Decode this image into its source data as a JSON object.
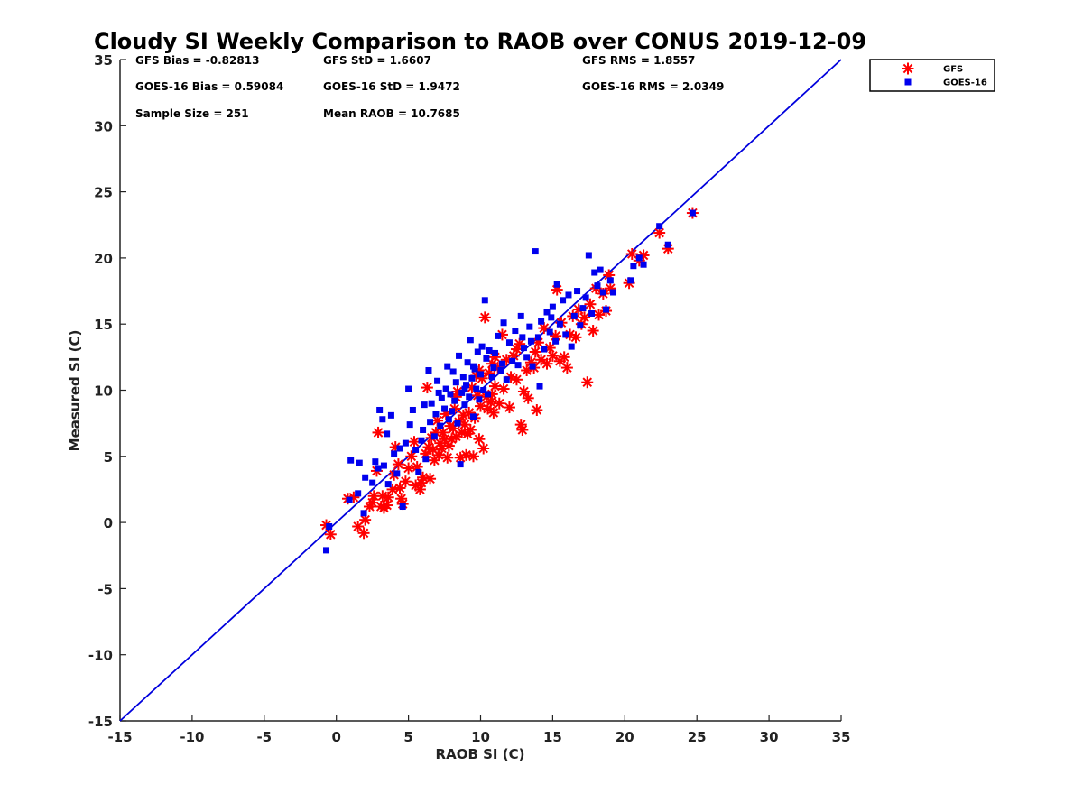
{
  "chart_data": {
    "type": "scatter",
    "title": "Cloudy SI Weekly Comparison to RAOB over CONUS 2019-12-09",
    "xlabel": "RAOB SI (C)",
    "ylabel": "Measured SI (C)",
    "xlim": [
      -15,
      35
    ],
    "ylim": [
      -15,
      35
    ],
    "xticks": [
      -15,
      -10,
      -5,
      0,
      5,
      10,
      15,
      20,
      25,
      30,
      35
    ],
    "yticks": [
      -15,
      -10,
      -5,
      0,
      5,
      10,
      15,
      20,
      25,
      30,
      35
    ],
    "grid": false,
    "legend_position": "outside-top-right",
    "reference_line": {
      "x": [
        -15,
        35
      ],
      "y": [
        -15,
        35
      ],
      "color": "#0000dd"
    },
    "stats": [
      "GFS Bias = -0.82813",
      "GFS StD = 1.6607",
      "GFS RMS = 1.8557",
      "GOES-16 Bias = 0.59084",
      "GOES-16 StD = 1.9472",
      "GOES-16 RMS = 2.0349",
      "Sample Size = 251",
      "Mean RAOB = 10.7685"
    ],
    "series": [
      {
        "name": "GFS",
        "color": "#ff0000",
        "marker": "asterisk",
        "points": [
          [
            -0.7,
            -0.2
          ],
          [
            -0.4,
            -0.9
          ],
          [
            0.8,
            1.8
          ],
          [
            1.5,
            -0.3
          ],
          [
            1.9,
            -0.8
          ],
          [
            2.0,
            0.2
          ],
          [
            1.2,
            1.9
          ],
          [
            2.3,
            1.2
          ],
          [
            2.6,
            2.0
          ],
          [
            2.8,
            3.9
          ],
          [
            2.9,
            6.8
          ],
          [
            3.1,
            1.2
          ],
          [
            3.3,
            1.1
          ],
          [
            3.5,
            1.3
          ],
          [
            3.6,
            1.9
          ],
          [
            3.9,
            2.5
          ],
          [
            4.0,
            3.6
          ],
          [
            4.1,
            5.7
          ],
          [
            4.3,
            4.4
          ],
          [
            4.5,
            1.8
          ],
          [
            4.6,
            1.4
          ],
          [
            4.8,
            3.1
          ],
          [
            5.0,
            4.1
          ],
          [
            5.2,
            5.0
          ],
          [
            5.4,
            6.1
          ],
          [
            5.5,
            2.8
          ],
          [
            5.6,
            4.2
          ],
          [
            5.8,
            2.5
          ],
          [
            6.0,
            3.4
          ],
          [
            6.2,
            5.2
          ],
          [
            6.3,
            10.2
          ],
          [
            6.4,
            5.7
          ],
          [
            6.5,
            3.3
          ],
          [
            6.6,
            6.4
          ],
          [
            6.8,
            4.7
          ],
          [
            6.9,
            6.8
          ],
          [
            7.0,
            7.7
          ],
          [
            7.1,
            5.1
          ],
          [
            7.2,
            6.0
          ],
          [
            7.3,
            5.6
          ],
          [
            7.5,
            6.3
          ],
          [
            7.6,
            8.2
          ],
          [
            7.7,
            4.9
          ],
          [
            7.8,
            5.8
          ],
          [
            7.9,
            7.3
          ],
          [
            8.0,
            6.3
          ],
          [
            8.1,
            7.1
          ],
          [
            8.2,
            8.6
          ],
          [
            8.3,
            6.5
          ],
          [
            8.4,
            9.9
          ],
          [
            8.5,
            7.6
          ],
          [
            8.6,
            4.9
          ],
          [
            8.7,
            6.8
          ],
          [
            8.8,
            8.1
          ],
          [
            8.9,
            7.4
          ],
          [
            9.0,
            5.1
          ],
          [
            9.1,
            6.7
          ],
          [
            9.2,
            8.3
          ],
          [
            9.3,
            7.0
          ],
          [
            9.4,
            10.2
          ],
          [
            9.5,
            5.0
          ],
          [
            9.6,
            7.9
          ],
          [
            9.7,
            11.1
          ],
          [
            9.8,
            9.6
          ],
          [
            9.9,
            6.3
          ],
          [
            10.0,
            8.8
          ],
          [
            10.1,
            10.9
          ],
          [
            10.2,
            5.6
          ],
          [
            10.3,
            15.5
          ],
          [
            10.4,
            9.5
          ],
          [
            10.5,
            8.6
          ],
          [
            10.6,
            11.3
          ],
          [
            10.7,
            9.1
          ],
          [
            10.8,
            12.0
          ],
          [
            10.9,
            8.3
          ],
          [
            11.0,
            10.3
          ],
          [
            11.2,
            11.7
          ],
          [
            11.3,
            9.0
          ],
          [
            11.5,
            14.2
          ],
          [
            11.6,
            10.1
          ],
          [
            11.8,
            12.3
          ],
          [
            12.0,
            8.7
          ],
          [
            12.1,
            11.0
          ],
          [
            12.3,
            12.6
          ],
          [
            12.5,
            10.8
          ],
          [
            12.7,
            13.5
          ],
          [
            12.8,
            7.4
          ],
          [
            12.9,
            7.0
          ],
          [
            13.0,
            9.9
          ],
          [
            13.2,
            11.5
          ],
          [
            13.3,
            9.4
          ],
          [
            13.5,
            12.1
          ],
          [
            13.7,
            11.7
          ],
          [
            13.9,
            8.5
          ],
          [
            14.0,
            13.6
          ],
          [
            14.2,
            12.3
          ],
          [
            14.4,
            14.7
          ],
          [
            14.6,
            12.0
          ],
          [
            14.8,
            13.2
          ],
          [
            15.0,
            12.6
          ],
          [
            15.2,
            14.1
          ],
          [
            15.3,
            17.6
          ],
          [
            15.5,
            12.2
          ],
          [
            15.6,
            15.1
          ],
          [
            15.8,
            12.5
          ],
          [
            16.0,
            11.7
          ],
          [
            16.2,
            14.2
          ],
          [
            16.4,
            15.6
          ],
          [
            16.6,
            14.0
          ],
          [
            16.8,
            16.1
          ],
          [
            17.0,
            15.0
          ],
          [
            17.2,
            15.5
          ],
          [
            17.4,
            10.6
          ],
          [
            17.6,
            16.5
          ],
          [
            17.8,
            14.5
          ],
          [
            18.0,
            17.7
          ],
          [
            18.2,
            15.7
          ],
          [
            18.5,
            17.3
          ],
          [
            18.7,
            16.0
          ],
          [
            18.9,
            18.7
          ],
          [
            19.0,
            17.7
          ],
          [
            20.3,
            18.1
          ],
          [
            20.5,
            20.3
          ],
          [
            21.0,
            19.8
          ],
          [
            21.3,
            20.2
          ],
          [
            22.4,
            21.9
          ],
          [
            23.0,
            20.7
          ],
          [
            24.7,
            23.4
          ],
          [
            12.5,
            13.1
          ],
          [
            11.0,
            12.5
          ],
          [
            9.9,
            11.5
          ],
          [
            8.3,
            9.5
          ],
          [
            7.4,
            6.8
          ],
          [
            6.7,
            5.5
          ],
          [
            5.9,
            3.0
          ],
          [
            4.4,
            2.6
          ],
          [
            3.2,
            2.0
          ],
          [
            2.5,
            1.5
          ],
          [
            10.8,
            9.7
          ],
          [
            13.8,
            12.9
          ]
        ]
      },
      {
        "name": "GOES-16",
        "color": "#0000ee",
        "marker": "square",
        "points": [
          [
            -0.7,
            -2.1
          ],
          [
            -0.5,
            -0.3
          ],
          [
            0.9,
            1.7
          ],
          [
            1.0,
            4.7
          ],
          [
            1.5,
            2.2
          ],
          [
            1.6,
            4.5
          ],
          [
            1.9,
            0.7
          ],
          [
            2.0,
            3.4
          ],
          [
            2.5,
            3.0
          ],
          [
            2.7,
            4.6
          ],
          [
            2.9,
            4.1
          ],
          [
            3.0,
            8.5
          ],
          [
            3.2,
            7.8
          ],
          [
            3.3,
            4.3
          ],
          [
            3.5,
            6.7
          ],
          [
            3.6,
            2.9
          ],
          [
            3.8,
            8.1
          ],
          [
            4.0,
            5.2
          ],
          [
            4.2,
            3.7
          ],
          [
            4.4,
            5.6
          ],
          [
            4.6,
            1.2
          ],
          [
            4.8,
            6.0
          ],
          [
            5.0,
            10.1
          ],
          [
            5.1,
            7.4
          ],
          [
            5.3,
            8.5
          ],
          [
            5.5,
            5.5
          ],
          [
            5.7,
            3.8
          ],
          [
            5.9,
            6.2
          ],
          [
            6.0,
            7.0
          ],
          [
            6.2,
            4.8
          ],
          [
            6.4,
            11.5
          ],
          [
            6.5,
            7.6
          ],
          [
            6.6,
            9.0
          ],
          [
            6.8,
            6.5
          ],
          [
            6.9,
            8.2
          ],
          [
            7.0,
            10.7
          ],
          [
            7.2,
            7.3
          ],
          [
            7.3,
            9.4
          ],
          [
            7.5,
            8.6
          ],
          [
            7.6,
            10.1
          ],
          [
            7.7,
            11.8
          ],
          [
            7.8,
            7.8
          ],
          [
            7.9,
            9.7
          ],
          [
            8.0,
            8.4
          ],
          [
            8.1,
            11.4
          ],
          [
            8.2,
            9.2
          ],
          [
            8.3,
            10.6
          ],
          [
            8.4,
            7.5
          ],
          [
            8.5,
            12.6
          ],
          [
            8.6,
            4.4
          ],
          [
            8.7,
            9.8
          ],
          [
            8.8,
            11.0
          ],
          [
            8.9,
            8.9
          ],
          [
            9.0,
            10.4
          ],
          [
            9.1,
            12.1
          ],
          [
            9.2,
            9.5
          ],
          [
            9.3,
            13.8
          ],
          [
            9.4,
            10.9
          ],
          [
            9.5,
            8.0
          ],
          [
            9.6,
            11.6
          ],
          [
            9.7,
            10.1
          ],
          [
            9.8,
            12.9
          ],
          [
            9.9,
            9.3
          ],
          [
            10.0,
            11.2
          ],
          [
            10.1,
            13.3
          ],
          [
            10.2,
            10.0
          ],
          [
            10.3,
            16.8
          ],
          [
            10.4,
            12.4
          ],
          [
            10.5,
            9.7
          ],
          [
            10.6,
            13.0
          ],
          [
            10.8,
            11.0
          ],
          [
            11.0,
            12.8
          ],
          [
            11.2,
            14.1
          ],
          [
            11.4,
            11.5
          ],
          [
            11.6,
            15.1
          ],
          [
            11.8,
            10.8
          ],
          [
            12.0,
            13.6
          ],
          [
            12.2,
            12.2
          ],
          [
            12.4,
            14.5
          ],
          [
            12.6,
            11.9
          ],
          [
            12.8,
            15.6
          ],
          [
            13.0,
            13.2
          ],
          [
            13.2,
            12.5
          ],
          [
            13.4,
            14.8
          ],
          [
            13.6,
            11.8
          ],
          [
            13.8,
            20.5
          ],
          [
            14.0,
            14.0
          ],
          [
            14.1,
            10.3
          ],
          [
            14.2,
            15.2
          ],
          [
            14.4,
            13.1
          ],
          [
            14.6,
            15.9
          ],
          [
            14.8,
            14.4
          ],
          [
            15.0,
            16.3
          ],
          [
            15.2,
            13.7
          ],
          [
            15.3,
            18.0
          ],
          [
            15.5,
            15.0
          ],
          [
            15.7,
            16.8
          ],
          [
            15.9,
            14.2
          ],
          [
            16.1,
            17.2
          ],
          [
            16.3,
            13.3
          ],
          [
            16.5,
            15.6
          ],
          [
            16.7,
            17.5
          ],
          [
            16.9,
            14.9
          ],
          [
            17.1,
            16.2
          ],
          [
            17.3,
            17.0
          ],
          [
            17.5,
            20.2
          ],
          [
            17.7,
            15.8
          ],
          [
            17.9,
            18.9
          ],
          [
            18.1,
            17.9
          ],
          [
            18.3,
            19.1
          ],
          [
            18.5,
            17.4
          ],
          [
            18.7,
            16.1
          ],
          [
            19.0,
            18.3
          ],
          [
            19.2,
            17.4
          ],
          [
            20.4,
            18.3
          ],
          [
            20.6,
            19.4
          ],
          [
            21.0,
            20.0
          ],
          [
            21.3,
            19.5
          ],
          [
            22.4,
            22.4
          ],
          [
            23.0,
            21.0
          ],
          [
            24.7,
            23.4
          ],
          [
            11.5,
            12.0
          ],
          [
            10.9,
            11.7
          ],
          [
            9.5,
            11.8
          ],
          [
            8.9,
            10.1
          ],
          [
            12.9,
            14.0
          ],
          [
            14.9,
            15.5
          ],
          [
            6.1,
            8.9
          ],
          [
            7.1,
            9.8
          ],
          [
            13.5,
            13.7
          ]
        ]
      }
    ]
  }
}
